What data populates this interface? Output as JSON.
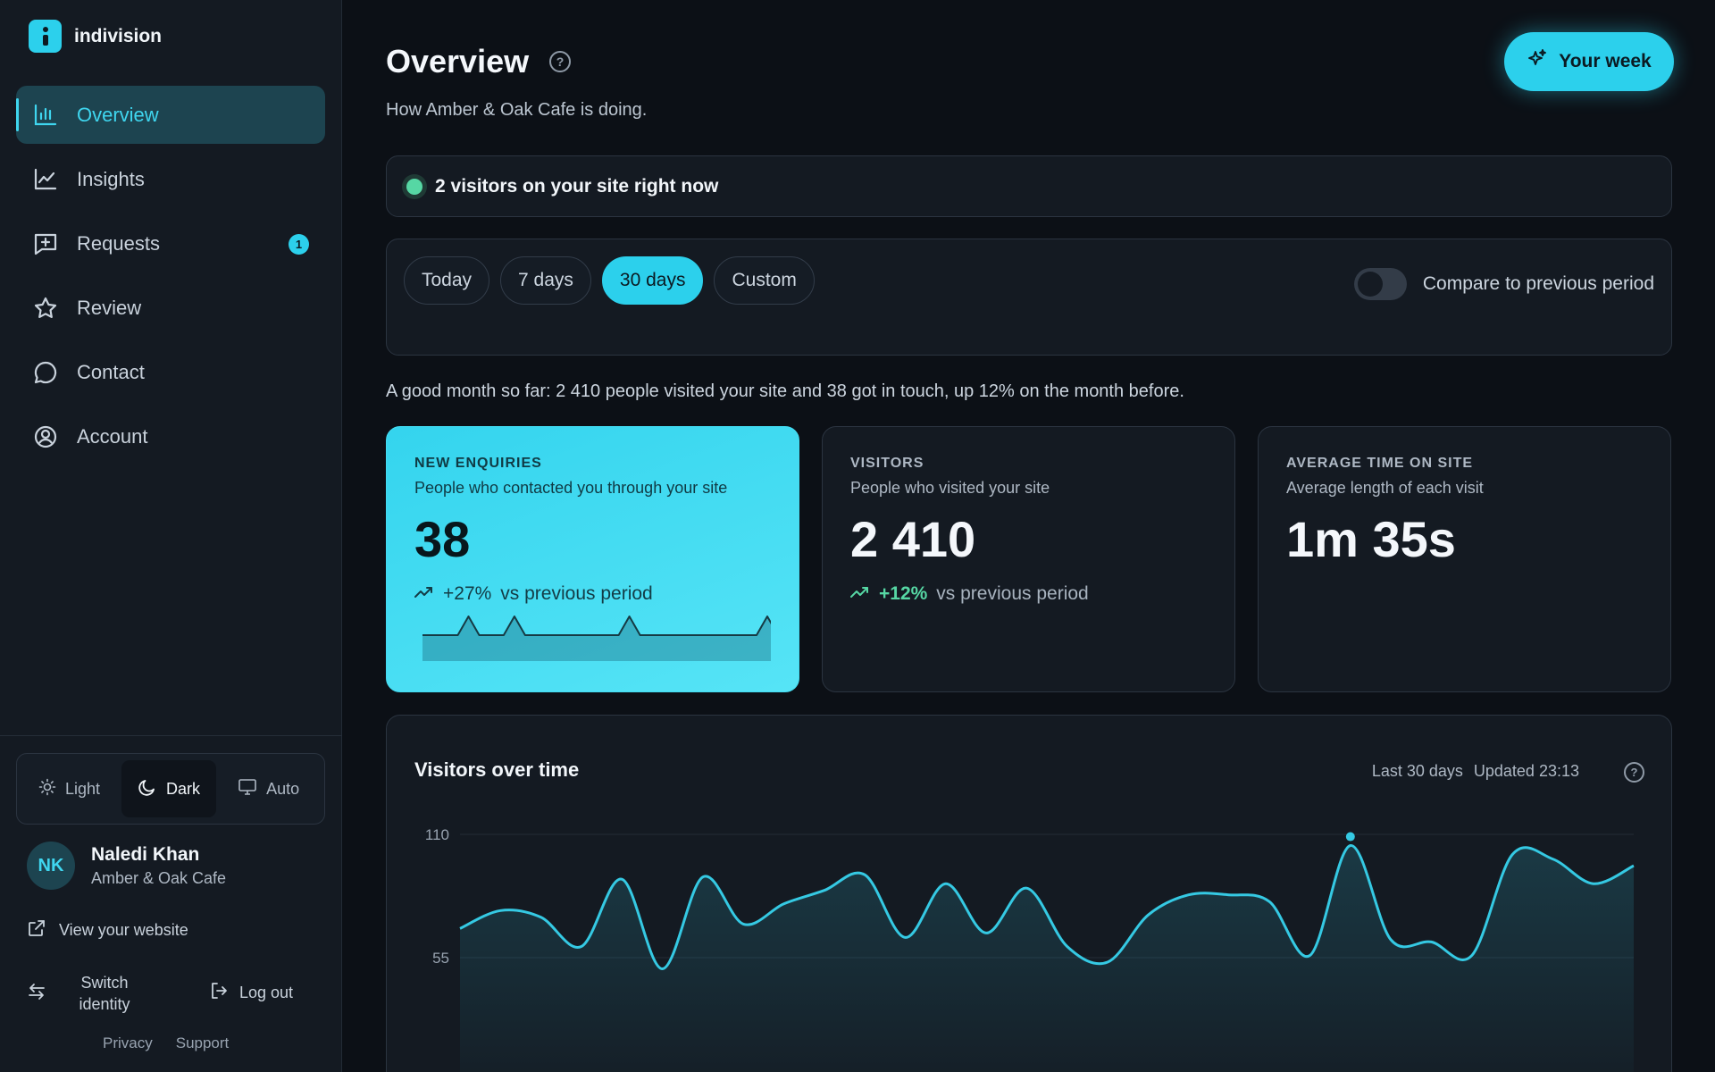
{
  "brand": {
    "name": "indivision"
  },
  "nav": {
    "items": [
      {
        "label": "Overview",
        "icon": "bar-chart-icon",
        "active": true
      },
      {
        "label": "Insights",
        "icon": "line-chart-icon"
      },
      {
        "label": "Requests",
        "icon": "message-plus-icon",
        "badge": "1"
      },
      {
        "label": "Review",
        "icon": "star-icon"
      },
      {
        "label": "Contact",
        "icon": "chat-bubble-icon"
      },
      {
        "label": "Account",
        "icon": "user-circle-icon"
      }
    ]
  },
  "theme": {
    "light": "Light",
    "dark": "Dark",
    "auto": "Auto",
    "selected": "Dark"
  },
  "user": {
    "initials": "NK",
    "name": "Naledi Khan",
    "org": "Amber & Oak Cafe"
  },
  "sidebar_links": {
    "view_website": "View your website",
    "switch_identity": "Switch identity",
    "logout": "Log out",
    "privacy": "Privacy",
    "support": "Support"
  },
  "header": {
    "title": "Overview",
    "subtitle": "How Amber & Oak Cafe is doing.",
    "your_week": "Your week"
  },
  "live": {
    "text": "2 visitors on your site right now"
  },
  "range": {
    "options": [
      "Today",
      "7 days",
      "30 days",
      "Custom"
    ],
    "selected": "30 days",
    "compare_label": "Compare to previous period",
    "compare_on": false
  },
  "summary": "A good month so far: 2 410 people visited your site and 38 got in touch, up 12% on the month before.",
  "cards": [
    {
      "label": "NEW ENQUIRIES",
      "desc": "People who contacted you through your site",
      "value": "38",
      "delta": "+27%",
      "delta_suffix": "vs previous period",
      "sparkline": [
        0,
        0,
        1,
        0,
        1,
        0,
        0,
        0,
        0,
        1,
        0,
        0,
        0,
        0,
        0,
        1
      ]
    },
    {
      "label": "VISITORS",
      "desc": "People who visited your site",
      "value": "2 410",
      "delta": "+12%",
      "delta_suffix": "vs previous period"
    },
    {
      "label": "AVERAGE TIME ON SITE",
      "desc": "Average length of each visit",
      "value": "1m 35s"
    }
  ],
  "chart": {
    "title": "Visitors over time",
    "range_label": "Last 30 days",
    "updated": "Updated 23:13"
  },
  "chart_data": {
    "type": "area",
    "title": "Visitors over time",
    "xlabel": "",
    "ylabel": "",
    "yticks": [
      "110",
      "55"
    ],
    "ylim": [
      0,
      110
    ],
    "grid": true,
    "values": [
      68,
      76,
      73,
      60,
      90,
      50,
      91,
      70,
      79,
      85,
      92,
      64,
      88,
      66,
      86,
      60,
      53,
      74,
      83,
      83,
      80,
      56,
      105,
      63,
      62,
      56,
      101,
      99,
      88,
      96
    ],
    "highlight_index": 22,
    "colors": {
      "line": "#35c9e3"
    }
  }
}
